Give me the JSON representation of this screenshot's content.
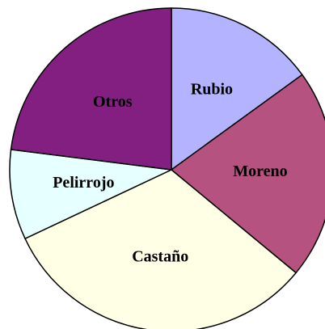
{
  "chart_data": {
    "type": "pie",
    "categories": [
      "Rubio",
      "Moreno",
      "Castaño",
      "Pelirrojo",
      "Otros"
    ],
    "values": [
      15,
      21,
      32,
      9,
      23
    ],
    "colors": [
      "#b3b3ff",
      "#b5527f",
      "#ffffe6",
      "#e6ffff",
      "#831f80"
    ]
  }
}
